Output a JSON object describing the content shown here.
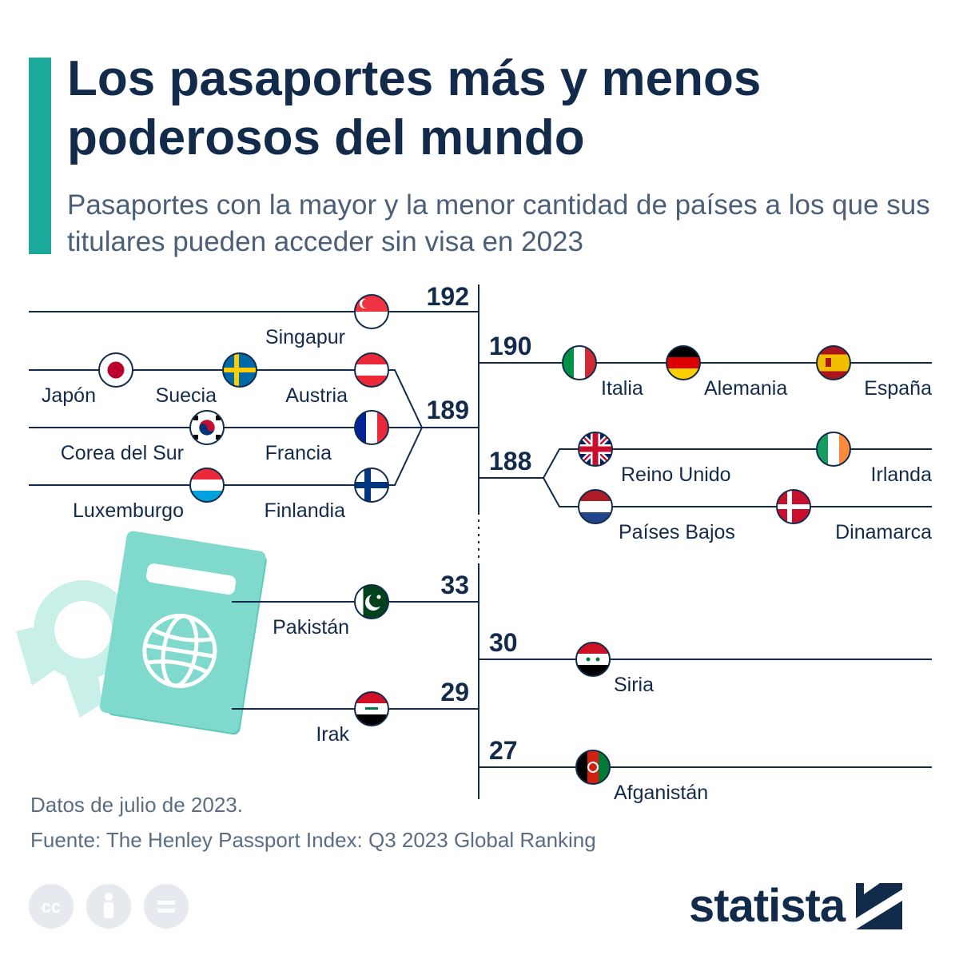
{
  "header": {
    "title": "Los pasaportes más y menos poderosos del mundo",
    "subtitle": "Pasaportes con la mayor y la menor cantidad de países a los que sus titulares pueden acceder sin visa en 2023"
  },
  "chart_data": {
    "type": "bracket",
    "value_label": "países sin visa",
    "groups": [
      {
        "value": 192,
        "countries": [
          "Singapur"
        ]
      },
      {
        "value": 190,
        "countries": [
          "Italia",
          "Alemania",
          "España"
        ]
      },
      {
        "value": 189,
        "countries": [
          "Japón",
          "Suecia",
          "Austria",
          "Corea del Sur",
          "Francia",
          "Luxemburgo",
          "Finlandia"
        ]
      },
      {
        "value": 188,
        "countries": [
          "Reino Unido",
          "Irlanda",
          "Países Bajos",
          "Dinamarca"
        ]
      },
      {
        "value": 33,
        "countries": [
          "Pakistán"
        ]
      },
      {
        "value": 30,
        "countries": [
          "Siria"
        ]
      },
      {
        "value": 29,
        "countries": [
          "Irak"
        ]
      },
      {
        "value": 27,
        "countries": [
          "Afganistán"
        ]
      }
    ],
    "colors": {
      "line": "#132b4b",
      "accent": "#1aa99b",
      "passport": "#7fd9cc",
      "passport_light": "#c9efe9"
    }
  },
  "footer": {
    "note": "Datos de julio de 2023.",
    "source": "Fuente: The Henley Passport Index: Q3 2023 Global Ranking"
  },
  "license_icons": [
    "cc-icon",
    "attribution-icon",
    "no-derivatives-icon"
  ],
  "brand": {
    "name": "statista"
  }
}
